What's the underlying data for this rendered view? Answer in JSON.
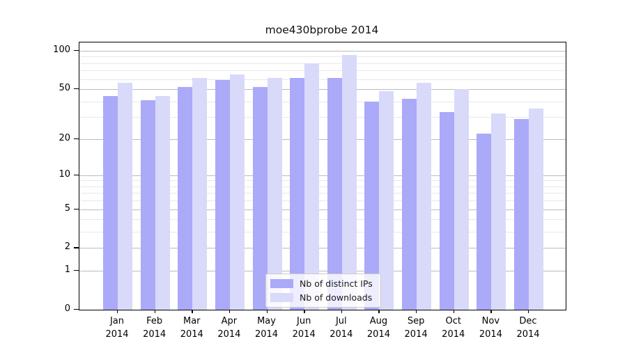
{
  "title": "moe430bprobe 2014",
  "legend": {
    "items": [
      {
        "label": "Nb of distinct IPs"
      },
      {
        "label": "Nb of downloads"
      }
    ]
  },
  "colors": {
    "distinct_ips": "#aaaaf9",
    "downloads": "#d9d9f9",
    "grid_major": "#bbbbbb",
    "grid_minor": "#e8e8e8",
    "axis": "#000000",
    "legend_border": "#cccccc",
    "background": "#ffffff"
  },
  "chart_data": {
    "type": "bar",
    "title": "moe430bprobe 2014",
    "categories": [
      "Jan",
      "Feb",
      "Mar",
      "Apr",
      "May",
      "Jun",
      "Jul",
      "Aug",
      "Sep",
      "Oct",
      "Nov",
      "Dec"
    ],
    "category_year": "2014",
    "series": [
      {
        "name": "Nb of distinct IPs",
        "color": "#aaaaf9",
        "values": [
          44,
          41,
          52,
          59,
          52,
          61,
          61,
          40,
          42,
          33,
          22,
          29
        ]
      },
      {
        "name": "Nb of downloads",
        "color": "#d9d9f9",
        "values": [
          56,
          44,
          61,
          65,
          61,
          80,
          93,
          48,
          56,
          50,
          32,
          35
        ]
      }
    ],
    "xlabel": "",
    "ylabel": "",
    "yscale": "log10(value+1)",
    "ylim": [
      0,
      116
    ],
    "yticks_major": [
      0,
      1,
      2,
      5,
      10,
      20,
      50,
      100
    ],
    "yticks_minor": [
      3,
      4,
      6,
      7,
      8,
      9,
      30,
      40,
      60,
      70,
      80,
      90
    ],
    "grid": true,
    "legend_position": "lower center inside"
  }
}
